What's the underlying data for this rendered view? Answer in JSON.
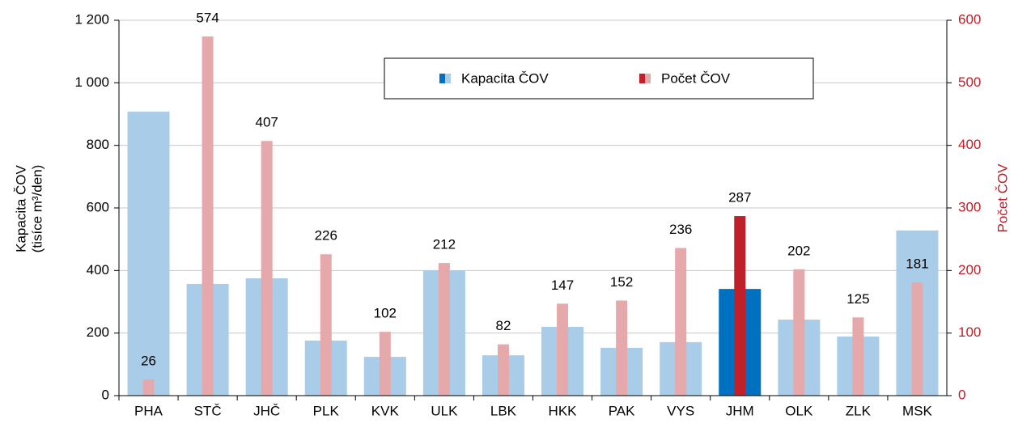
{
  "chart_data": {
    "type": "bar",
    "categories": [
      "PHA",
      "STČ",
      "JHČ",
      "PLK",
      "KVK",
      "ULK",
      "LBK",
      "HKK",
      "PAK",
      "VYS",
      "JHM",
      "OLK",
      "ZLK",
      "MSK"
    ],
    "series": [
      {
        "name": "Kapacita ČOV",
        "color": "#a9cde9",
        "colors": [
          "#a9cde9",
          "#a9cde9",
          "#a9cde9",
          "#a9cde9",
          "#a9cde9",
          "#a9cde9",
          "#a9cde9",
          "#a9cde9",
          "#a9cde9",
          "#a9cde9",
          "#0070c0",
          "#a9cde9",
          "#a9cde9",
          "#a9cde9"
        ],
        "values": [
          908,
          357,
          375,
          176,
          124,
          400,
          129,
          220,
          153,
          171,
          341,
          243,
          189,
          528
        ]
      },
      {
        "name": "Počet ČOV",
        "color": "#e6a9ab",
        "axis": "y2",
        "colors": [
          "#e6a9ab",
          "#e6a9ab",
          "#e6a9ab",
          "#e6a9ab",
          "#e6a9ab",
          "#e6a9ab",
          "#e6a9ab",
          "#e6a9ab",
          "#e6a9ab",
          "#e6a9ab",
          "#c0202a",
          "#e6a9ab",
          "#e6a9ab",
          "#e6a9ab"
        ],
        "values": [
          26,
          574,
          407,
          226,
          102,
          212,
          82,
          147,
          152,
          236,
          287,
          202,
          125,
          181
        ]
      }
    ],
    "ylabel": [
      "Kapacita ČOV",
      "(tisíce m³/den)"
    ],
    "y2label": "Počet ČOV",
    "y2label_color": "#c0202a",
    "ylim": [
      0,
      1200
    ],
    "yticks": [
      0,
      200,
      400,
      600,
      800,
      {
        "value": 1000,
        "label": "1 000"
      },
      {
        "value": 1200,
        "label": "1 200"
      }
    ],
    "y2lim": [
      0,
      600
    ],
    "y2ticks": [
      0,
      100,
      200,
      300,
      400,
      500,
      600
    ],
    "grid": true,
    "legend": "top"
  }
}
